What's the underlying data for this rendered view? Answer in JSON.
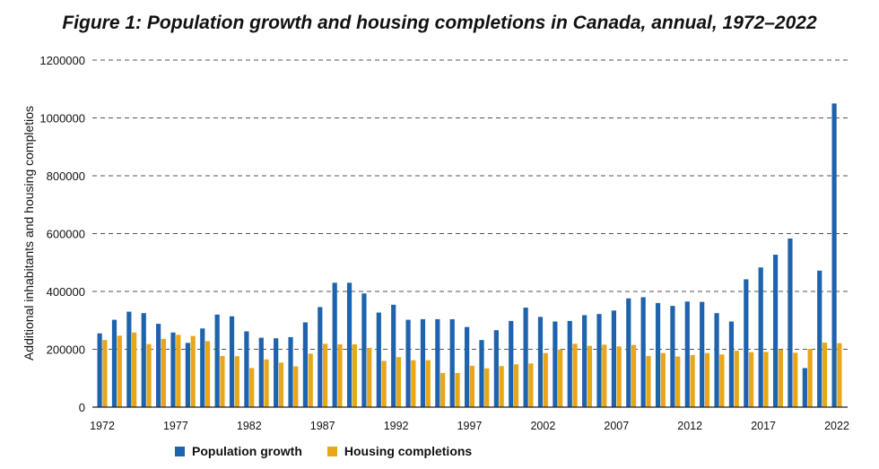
{
  "chart_data": {
    "type": "bar",
    "title": "Figure 1: Population growth and housing completions in Canada, annual, 1972–2022",
    "xlabel": "",
    "ylabel": "Additional inhabitants and housing completios",
    "ylim": [
      0,
      1200000
    ],
    "yticks": [
      "0",
      "200000",
      "400000",
      "600000",
      "800000",
      "1000000",
      "1200000"
    ],
    "ytick_values": [
      0,
      200000,
      400000,
      600000,
      800000,
      1000000,
      1200000
    ],
    "xtick_labels": [
      "1972",
      "1977",
      "1982",
      "1987",
      "1992",
      "1997",
      "2002",
      "2007",
      "2012",
      "2017",
      "2022"
    ],
    "grid": true,
    "legend_position": "bottom",
    "categories": [
      1972,
      1973,
      1974,
      1975,
      1976,
      1977,
      1978,
      1979,
      1980,
      1981,
      1982,
      1983,
      1984,
      1985,
      1986,
      1987,
      1988,
      1989,
      1990,
      1991,
      1992,
      1993,
      1994,
      1995,
      1996,
      1997,
      1998,
      1999,
      2000,
      2001,
      2002,
      2003,
      2004,
      2005,
      2006,
      2007,
      2008,
      2009,
      2010,
      2011,
      2012,
      2013,
      2014,
      2015,
      2016,
      2017,
      2018,
      2019,
      2020,
      2021,
      2022
    ],
    "series": [
      {
        "name": "Population growth",
        "color": "#1f63ad",
        "values": [
          255000,
          302000,
          330000,
          325000,
          288000,
          258000,
          222000,
          272000,
          320000,
          314000,
          262000,
          240000,
          238000,
          242000,
          293000,
          346000,
          430000,
          430000,
          393000,
          327000,
          354000,
          302000,
          304000,
          304000,
          304000,
          277000,
          232000,
          266000,
          298000,
          344000,
          312000,
          296000,
          298000,
          318000,
          322000,
          334000,
          376000,
          380000,
          360000,
          350000,
          365000,
          364000,
          325000,
          296000,
          442000,
          483000,
          527000,
          583000,
          135000,
          472000,
          1050000
        ]
      },
      {
        "name": "Housing completions",
        "color": "#e8a619",
        "values": [
          232000,
          247000,
          258000,
          218000,
          236000,
          250000,
          246000,
          228000,
          177000,
          176000,
          135000,
          165000,
          154000,
          141000,
          185000,
          219000,
          217000,
          217000,
          205000,
          160000,
          173000,
          162000,
          162000,
          118000,
          118000,
          143000,
          134000,
          142000,
          148000,
          151000,
          187000,
          199000,
          219000,
          212000,
          216000,
          210000,
          215000,
          177000,
          187000,
          175000,
          180000,
          187000,
          182000,
          195000,
          190000,
          191000,
          199000,
          188000,
          201000,
          223000,
          221000
        ]
      }
    ]
  }
}
